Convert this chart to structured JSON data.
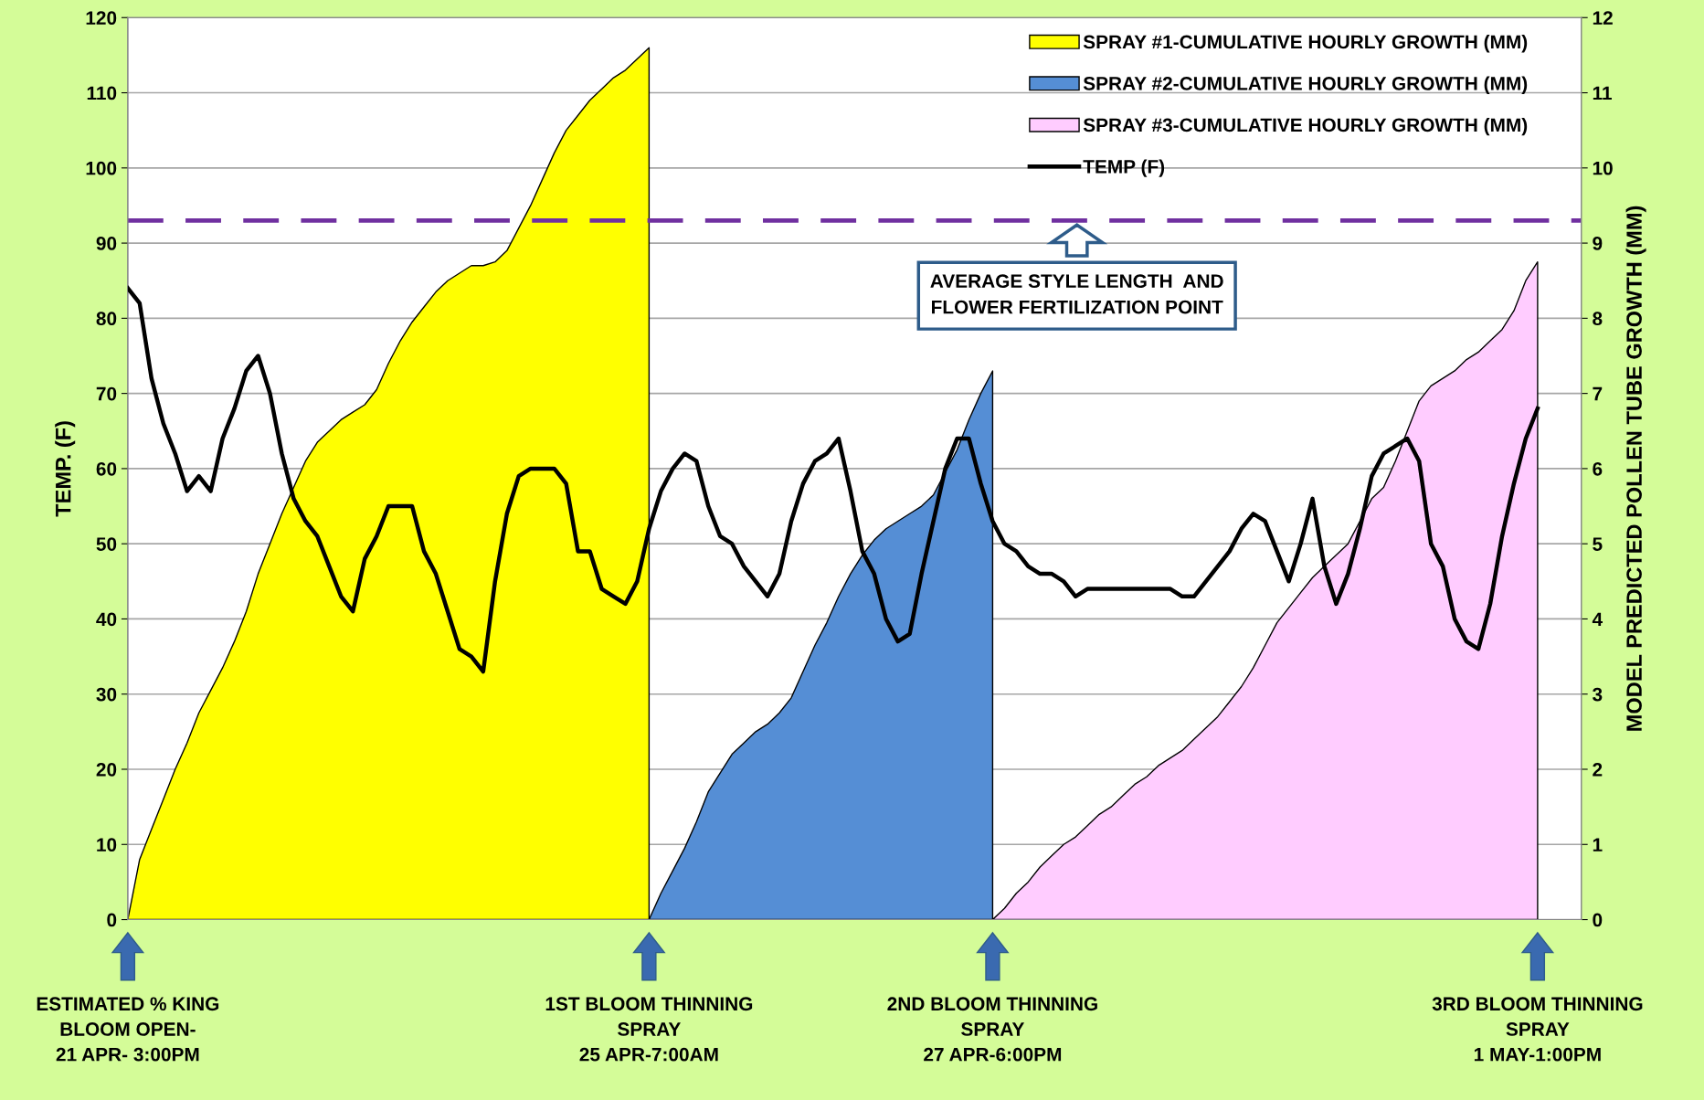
{
  "chart_data": {
    "type": "area",
    "ylabel": "TEMP. (F)",
    "y2label": "MODEL PREDICTED POLLEN TUBE GROWTH (MM)",
    "categories": [
      null,
      null,
      null,
      null,
      null,
      null,
      null,
      null,
      null,
      null,
      null,
      null,
      null,
      null,
      null,
      null,
      null,
      null,
      null,
      null,
      null,
      null,
      null,
      null,
      null,
      null,
      null,
      null,
      null,
      null,
      null,
      null,
      null,
      null,
      null,
      null,
      null,
      null,
      null,
      null,
      null,
      null,
      null,
      null,
      null,
      null,
      null,
      null,
      null,
      null,
      null,
      null,
      null,
      null,
      null,
      null,
      null,
      null,
      null,
      null,
      null,
      null,
      null,
      null,
      null,
      null,
      null,
      null,
      null,
      null,
      null,
      null,
      null,
      null,
      null,
      null,
      null,
      null,
      null,
      null,
      null,
      null,
      null,
      null,
      null,
      null,
      null,
      null,
      null,
      null,
      null,
      null,
      null,
      null,
      null,
      null,
      null,
      null,
      null,
      null,
      null,
      null,
      null,
      null,
      null,
      null,
      null,
      null,
      null,
      null,
      null,
      null,
      null,
      null,
      null,
      null,
      null,
      null,
      null,
      null
    ],
    "series": [
      {
        "name": "SPRAY #1-CUMULATIVE HOURLY GROWTH (MM)",
        "axis": "y2",
        "color": "#ffff00",
        "values": [
          0,
          0.8,
          1.2,
          1.6,
          2.0,
          2.35,
          2.75,
          3.05,
          3.35,
          3.7,
          4.1,
          4.6,
          5.0,
          5.4,
          5.75,
          6.1,
          6.35,
          6.5,
          6.65,
          6.75,
          6.85,
          7.05,
          7.4,
          7.7,
          7.95,
          8.15,
          8.35,
          8.5,
          8.6,
          8.7,
          8.7,
          8.75,
          8.9,
          9.2,
          9.5,
          9.85,
          10.2,
          10.5,
          10.7,
          10.9,
          11.05,
          11.2,
          11.3,
          11.45,
          11.6,
          null,
          null,
          null,
          null,
          null,
          null,
          null,
          null,
          null,
          null,
          null,
          null,
          null,
          null,
          null,
          null,
          null,
          null,
          null,
          null,
          null,
          null,
          null,
          null,
          null,
          null,
          null,
          null,
          null,
          null,
          null,
          null,
          null,
          null,
          null,
          null,
          null,
          null,
          null,
          null,
          null,
          null,
          null,
          null,
          null,
          null,
          null,
          null,
          null,
          null,
          null,
          null,
          null,
          null,
          null,
          null,
          null,
          null,
          null,
          null,
          null,
          null,
          null,
          null,
          null,
          null,
          null,
          null,
          null,
          null,
          null,
          null,
          null,
          null,
          null
        ]
      },
      {
        "name": "SPRAY #2-CUMULATIVE HOURLY GROWTH (MM)",
        "axis": "y2",
        "color": "#558ed5",
        "values": [
          null,
          null,
          null,
          null,
          null,
          null,
          null,
          null,
          null,
          null,
          null,
          null,
          null,
          null,
          null,
          null,
          null,
          null,
          null,
          null,
          null,
          null,
          null,
          null,
          null,
          null,
          null,
          null,
          null,
          null,
          null,
          null,
          null,
          null,
          null,
          null,
          null,
          null,
          null,
          null,
          null,
          null,
          null,
          null,
          0,
          0.35,
          0.65,
          0.95,
          1.3,
          1.7,
          1.95,
          2.2,
          2.35,
          2.5,
          2.6,
          2.75,
          2.95,
          3.3,
          3.65,
          3.95,
          4.3,
          4.6,
          4.85,
          5.05,
          5.2,
          5.3,
          5.4,
          5.5,
          5.65,
          5.95,
          6.25,
          6.65,
          7.0,
          7.3,
          null,
          null,
          null,
          null,
          null,
          null,
          null,
          null,
          null,
          null,
          null,
          null,
          null,
          null,
          null,
          null,
          null,
          null,
          null,
          null,
          null,
          null,
          null,
          null,
          null,
          null,
          null,
          null,
          null,
          null,
          null,
          null,
          null,
          null,
          null,
          null,
          null,
          null,
          null,
          null,
          null,
          null,
          null,
          null,
          null,
          null
        ]
      },
      {
        "name": "SPRAY #3-CUMULATIVE HOURLY GROWTH (MM)",
        "axis": "y2",
        "color": "#ffccff",
        "values": [
          null,
          null,
          null,
          null,
          null,
          null,
          null,
          null,
          null,
          null,
          null,
          null,
          null,
          null,
          null,
          null,
          null,
          null,
          null,
          null,
          null,
          null,
          null,
          null,
          null,
          null,
          null,
          null,
          null,
          null,
          null,
          null,
          null,
          null,
          null,
          null,
          null,
          null,
          null,
          null,
          null,
          null,
          null,
          null,
          null,
          null,
          null,
          null,
          null,
          null,
          null,
          null,
          null,
          null,
          null,
          null,
          null,
          null,
          null,
          null,
          null,
          null,
          null,
          null,
          null,
          null,
          null,
          null,
          null,
          null,
          null,
          null,
          null,
          0,
          0.15,
          0.35,
          0.5,
          0.7,
          0.85,
          1.0,
          1.1,
          1.25,
          1.4,
          1.5,
          1.65,
          1.8,
          1.9,
          2.05,
          2.15,
          2.25,
          2.4,
          2.55,
          2.7,
          2.9,
          3.1,
          3.35,
          3.65,
          3.95,
          4.15,
          4.35,
          4.55,
          4.7,
          4.85,
          5.0,
          5.3,
          5.6,
          5.75,
          6.1,
          6.5,
          6.9,
          7.1,
          7.2,
          7.3,
          7.45,
          7.55,
          7.7,
          7.85,
          8.1,
          8.5,
          8.75
        ]
      },
      {
        "name": "TEMP (F)",
        "type": "line",
        "color": "#000000",
        "values": [
          84,
          82,
          72,
          66,
          62,
          57,
          59,
          57,
          64,
          68,
          73,
          75,
          70,
          62,
          56,
          53,
          51,
          47,
          43,
          41,
          48,
          51,
          55,
          55,
          55,
          49,
          46,
          41,
          36,
          35,
          33,
          45,
          54,
          59,
          60,
          60,
          60,
          58,
          49,
          49,
          44,
          43,
          42,
          45,
          52,
          57,
          60,
          62,
          61,
          55,
          51,
          50,
          47,
          45,
          43,
          46,
          53,
          58,
          61,
          62,
          64,
          57,
          49,
          46,
          40,
          37,
          38,
          46,
          53,
          60,
          64,
          64,
          58,
          53,
          50,
          49,
          47,
          46,
          46,
          45,
          43,
          44,
          44,
          44,
          44,
          44,
          44,
          44,
          44,
          43,
          43,
          45,
          47,
          49,
          52,
          54,
          53,
          49,
          45,
          50,
          56,
          47,
          42,
          46,
          52,
          59,
          62,
          63,
          64,
          61,
          50,
          47,
          40,
          37,
          36,
          42,
          51,
          58,
          64,
          68
        ]
      }
    ],
    "ylim": [
      0,
      120
    ],
    "yticks": [
      0,
      10,
      20,
      30,
      40,
      50,
      60,
      70,
      80,
      90,
      100,
      110,
      120
    ],
    "y2lim": [
      0,
      12
    ],
    "y2ticks": [
      0,
      1,
      2,
      3,
      4,
      5,
      6,
      7,
      8,
      9,
      10,
      11,
      12
    ],
    "ref_lines": [
      {
        "axis": "y2",
        "value": 9.3,
        "label": "AVERAGE STYLE LENGTH  AND\nFLOWER FERTILIZATION POINT",
        "color": "#7030a0",
        "line_style": "dashed"
      }
    ],
    "annotations": [
      "ESTIMATED % KING\nBLOOM OPEN-\n21 APR- 3:00PM",
      "1ST BLOOM THINNING\nSPRAY\n25 APR-7:00AM",
      "2ND BLOOM THINNING\nSPRAY\n27 APR-6:00PM",
      "3RD BLOOM THINNING\nSPRAY\n1 MAY-1:00PM"
    ],
    "grid": "y",
    "legend": "top right",
    "tick_labels": "y",
    "marker": "none",
    "line_style": "solid"
  }
}
